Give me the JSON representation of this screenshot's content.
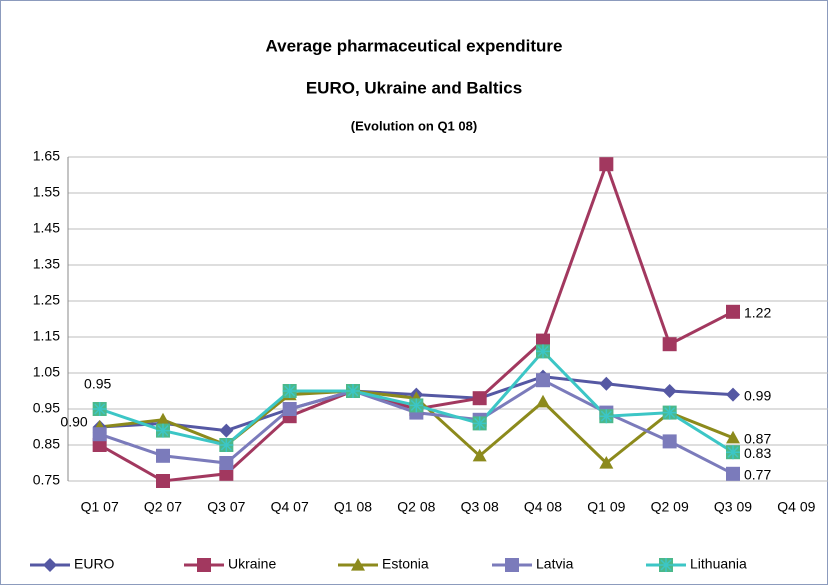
{
  "chart_data": {
    "type": "line",
    "title": "Average pharmaceutical expenditure",
    "subtitle": "EURO, Ukraine and Baltics",
    "note": "(Evolution on Q1 08)",
    "categories": [
      "Q1 07",
      "Q2 07",
      "Q3 07",
      "Q4 07",
      "Q1 08",
      "Q2 08",
      "Q3 08",
      "Q4 08",
      "Q1 09",
      "Q2 09",
      "Q3 09",
      "Q4 09"
    ],
    "series": [
      {
        "name": "EURO",
        "color": "#5558a3",
        "marker": "diamond",
        "values": [
          0.9,
          0.91,
          0.89,
          0.95,
          1.0,
          0.99,
          0.98,
          1.04,
          1.02,
          1.0,
          0.99,
          null
        ],
        "value_labels": [
          null,
          null,
          null,
          null,
          null,
          null,
          null,
          null,
          null,
          null,
          "0.99",
          null
        ]
      },
      {
        "name": "Ukraine",
        "color": "#a2385f",
        "marker": "square",
        "values": [
          0.85,
          0.75,
          0.77,
          0.93,
          1.0,
          0.95,
          0.98,
          1.14,
          1.63,
          1.13,
          1.22,
          null
        ],
        "value_labels": [
          null,
          null,
          null,
          null,
          null,
          null,
          null,
          null,
          null,
          null,
          "1.22",
          null
        ]
      },
      {
        "name": "Estonia",
        "color": "#8c8a1c",
        "marker": "triangle",
        "values": [
          0.9,
          0.92,
          0.85,
          0.99,
          1.0,
          0.98,
          0.82,
          0.97,
          0.8,
          0.94,
          0.87,
          null
        ],
        "value_labels": [
          "0.90",
          null,
          null,
          null,
          null,
          null,
          null,
          null,
          null,
          null,
          "0.87",
          null
        ]
      },
      {
        "name": "Latvia",
        "color": "#7b7bbb",
        "marker": "square",
        "values": [
          0.88,
          0.82,
          0.8,
          0.95,
          1.0,
          0.94,
          0.92,
          1.03,
          0.94,
          0.86,
          0.77,
          null
        ],
        "value_labels": [
          null,
          null,
          null,
          null,
          null,
          null,
          null,
          null,
          null,
          null,
          "0.77",
          null
        ]
      },
      {
        "name": "Lithuania",
        "color": "#3cc6c6",
        "marker": "star-square",
        "values": [
          0.95,
          0.89,
          0.85,
          1.0,
          1.0,
          0.96,
          0.91,
          1.11,
          0.93,
          0.94,
          0.83,
          null
        ],
        "value_labels": [
          "0.95",
          null,
          null,
          null,
          null,
          null,
          null,
          null,
          null,
          null,
          "0.83",
          null
        ]
      }
    ],
    "ylim": [
      0.75,
      1.65
    ],
    "yticks": [
      0.75,
      0.85,
      0.95,
      1.05,
      1.15,
      1.25,
      1.35,
      1.45,
      1.55,
      1.65
    ],
    "grid": true,
    "legend": "bottom"
  }
}
